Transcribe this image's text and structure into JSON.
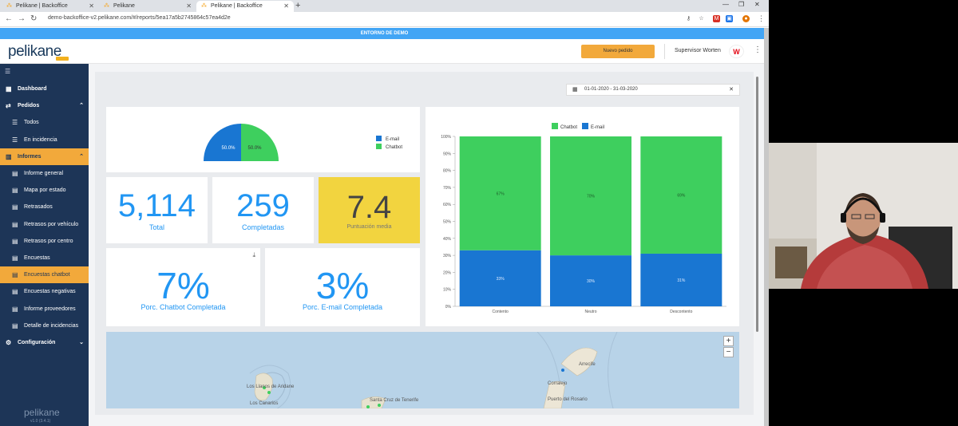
{
  "browser": {
    "tabs": [
      {
        "label": "Pelikane | Backoffice"
      },
      {
        "label": "Pelikane"
      },
      {
        "label": "Pelikane | Backoffice"
      }
    ],
    "url": "demo-backoffice-v2.pelikane.com/#/reports/5ea17a5b2745864c57ea4d2e"
  },
  "banner": "ENTORNO DE DEMO",
  "header": {
    "logo": "pelikane",
    "new_order_button": "Nuevo pedido",
    "user": "Supervisor Worten",
    "brand_letter": "W"
  },
  "sidebar": {
    "items": [
      {
        "label": "Dashboard",
        "type": "parent"
      },
      {
        "label": "Pedidos",
        "type": "parent"
      },
      {
        "label": "Todos",
        "type": "sub"
      },
      {
        "label": "En incidencia",
        "type": "sub"
      },
      {
        "label": "Informes",
        "type": "parent"
      },
      {
        "label": "Informe general",
        "type": "sub"
      },
      {
        "label": "Mapa por estado",
        "type": "sub"
      },
      {
        "label": "Retrasados",
        "type": "sub"
      },
      {
        "label": "Retrasos por vehículo",
        "type": "sub"
      },
      {
        "label": "Retrasos por centro",
        "type": "sub"
      },
      {
        "label": "Encuestas",
        "type": "sub"
      },
      {
        "label": "Encuestas chatbot",
        "type": "sub"
      },
      {
        "label": "Encuestas negativas",
        "type": "sub"
      },
      {
        "label": "Informe proveedores",
        "type": "sub"
      },
      {
        "label": "Detalle de incidencias",
        "type": "sub"
      },
      {
        "label": "Configuración",
        "type": "parent"
      }
    ],
    "footer_logo": "pelikane",
    "version": "v1.0 (3.4.1)"
  },
  "filters": {
    "date_range": "01-01-2020 - 31-03-2020"
  },
  "pie": {
    "legend": [
      "E-mail",
      "Chatbot"
    ],
    "email_pct": 50.0,
    "chatbot_pct": 50.0,
    "email_label": "50.0%",
    "chatbot_label": "50.0%",
    "email_color": "#1976d2",
    "chatbot_color": "#3ecf5e"
  },
  "kpis": {
    "total_value": "5,114",
    "total_label": "Total",
    "completed_value": "259",
    "completed_label": "Completadas",
    "score_value": "7.4",
    "score_label": "Puntuación media",
    "chatbot_pct_value": "7%",
    "chatbot_pct_label": "Porc. Chatbot Completada",
    "email_pct_value": "3%",
    "email_pct_label": "Porc. E-mail Completada"
  },
  "chart_data": {
    "type": "bar",
    "stacked": true,
    "categories": [
      "Contento",
      "Neutro",
      "Descontento"
    ],
    "series": [
      {
        "name": "Chatbot",
        "values": [
          67,
          70,
          69
        ],
        "labels": [
          "67%",
          "70%",
          "69%"
        ],
        "color": "#3ecf5e"
      },
      {
        "name": "E-mail",
        "values": [
          33,
          30,
          31
        ],
        "labels": [
          "33%",
          "30%",
          "31%"
        ],
        "color": "#1976d2"
      }
    ],
    "ylim": [
      0,
      100
    ],
    "yticks": [
      "0%",
      "10%",
      "20%",
      "30%",
      "40%",
      "50%",
      "60%",
      "70%",
      "80%",
      "90%",
      "100%"
    ],
    "legend_position": "top"
  },
  "map": {
    "labels": [
      "Los Llanos de Aridane",
      "Los Canarios",
      "Santa Cruz de Tenerife",
      "Arrecife",
      "Corralejo",
      "Puerto del Rosario"
    ],
    "zoom_in": "+",
    "zoom_out": "−"
  }
}
